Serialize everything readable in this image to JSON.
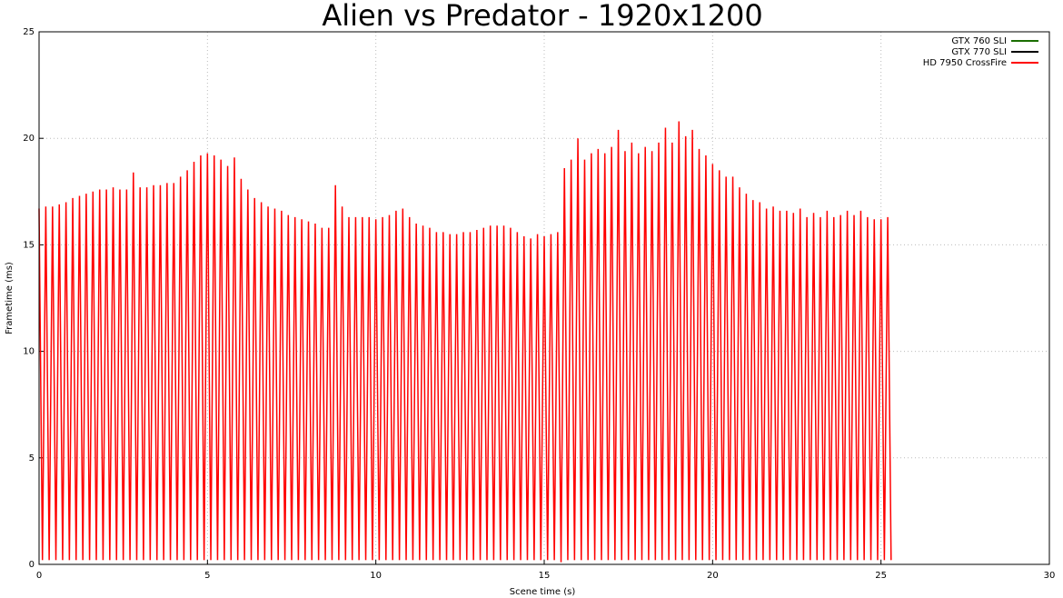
{
  "chart_data": {
    "type": "line",
    "title": "Alien vs Predator - 1920x1200",
    "x_label": "Scene time (s)",
    "y_label": "Frametime (ms)",
    "xlim": [
      0,
      30
    ],
    "xticks": [
      0,
      5,
      10,
      15,
      20,
      25,
      30
    ],
    "ylim": [
      0,
      25
    ],
    "yticks": [
      0,
      5,
      10,
      15,
      20,
      25
    ],
    "grid": true,
    "legend": "top-right",
    "series": [
      {
        "name": "GTX 760 SLI",
        "color": "#1a6e00",
        "x": [],
        "values": []
      },
      {
        "name": "GTX 770 SLI",
        "color": "#000000",
        "x": [],
        "values": []
      },
      {
        "name": "HD 7950 CrossFire",
        "color": "#ff0000",
        "x": [
          0,
          0.1,
          0.2,
          0.3,
          0.4,
          0.5,
          0.6,
          0.7,
          0.8,
          0.9,
          1,
          1.1,
          1.2,
          1.3,
          1.4,
          1.5,
          1.6,
          1.7,
          1.8,
          1.9,
          2,
          2.1,
          2.2,
          2.3,
          2.4,
          2.5,
          2.6,
          2.7,
          2.8,
          2.9,
          3,
          3.1,
          3.2,
          3.3,
          3.4,
          3.5,
          3.6,
          3.7,
          3.8,
          3.9,
          4,
          4.1,
          4.2,
          4.3,
          4.4,
          4.5,
          4.6,
          4.7,
          4.8,
          4.9,
          5,
          5.1,
          5.2,
          5.3,
          5.4,
          5.5,
          5.6,
          5.7,
          5.8,
          5.9,
          6,
          6.1,
          6.2,
          6.3,
          6.4,
          6.5,
          6.6,
          6.7,
          6.8,
          6.9,
          7,
          7.1,
          7.2,
          7.3,
          7.4,
          7.5,
          7.6,
          7.7,
          7.8,
          7.9,
          8,
          8.1,
          8.2,
          8.3,
          8.4,
          8.5,
          8.6,
          8.7,
          8.8,
          8.9,
          9,
          9.1,
          9.2,
          9.3,
          9.4,
          9.5,
          9.6,
          9.7,
          9.8,
          9.9,
          10,
          10.1,
          10.2,
          10.3,
          10.4,
          10.5,
          10.6,
          10.7,
          10.8,
          10.9,
          11,
          11.1,
          11.2,
          11.3,
          11.4,
          11.5,
          11.6,
          11.7,
          11.8,
          11.9,
          12,
          12.1,
          12.2,
          12.3,
          12.4,
          12.5,
          12.6,
          12.7,
          12.8,
          12.9,
          13,
          13.1,
          13.2,
          13.3,
          13.4,
          13.5,
          13.6,
          13.7,
          13.8,
          13.9,
          14,
          14.1,
          14.2,
          14.3,
          14.4,
          14.5,
          14.6,
          14.7,
          14.8,
          14.9,
          15,
          15.1,
          15.2,
          15.3,
          15.4,
          15.5,
          15.6,
          15.7,
          15.8,
          15.9,
          16,
          16.1,
          16.2,
          16.3,
          16.4,
          16.5,
          16.6,
          16.7,
          16.8,
          16.9,
          17,
          17.1,
          17.2,
          17.3,
          17.4,
          17.5,
          17.6,
          17.7,
          17.8,
          17.9,
          18,
          18.1,
          18.2,
          18.3,
          18.4,
          18.5,
          18.6,
          18.7,
          18.8,
          18.9,
          19,
          19.1,
          19.2,
          19.3,
          19.4,
          19.5,
          19.6,
          19.7,
          19.8,
          19.9,
          20,
          20.1,
          20.2,
          20.3,
          20.4,
          20.5,
          20.6,
          20.7,
          20.8,
          20.9,
          21,
          21.1,
          21.2,
          21.3,
          21.4,
          21.5,
          21.6,
          21.7,
          21.8,
          21.9,
          22,
          22.1,
          22.2,
          22.3,
          22.4,
          22.5,
          22.6,
          22.7,
          22.8,
          22.9,
          23,
          23.1,
          23.2,
          23.3,
          23.4,
          23.5,
          23.6,
          23.7,
          23.8,
          23.9,
          24,
          24.1,
          24.2,
          24.3,
          24.4,
          24.5,
          24.6,
          24.7,
          24.8,
          24.9,
          25,
          25.1,
          25.2,
          25.3
        ],
        "values": [
          16.7,
          0.2,
          16.8,
          0.2,
          16.8,
          0.2,
          16.9,
          0.2,
          17.0,
          0.2,
          17.2,
          0.2,
          17.3,
          0.2,
          17.4,
          0.2,
          17.5,
          0.2,
          17.6,
          0.2,
          17.6,
          0.2,
          17.7,
          0.2,
          17.6,
          0.2,
          17.6,
          0.2,
          18.4,
          0.2,
          17.7,
          0.2,
          17.7,
          0.2,
          17.8,
          0.2,
          17.8,
          0.2,
          17.9,
          0.2,
          17.9,
          0.2,
          18.2,
          0.2,
          18.5,
          0.2,
          18.9,
          0.2,
          19.2,
          0.2,
          19.3,
          0.2,
          19.2,
          0.2,
          19.0,
          0.2,
          18.7,
          0.2,
          19.1,
          0.2,
          18.1,
          0.2,
          17.6,
          0.2,
          17.2,
          0.2,
          17.0,
          0.2,
          16.8,
          0.2,
          16.7,
          0.2,
          16.6,
          0.2,
          16.4,
          0.2,
          16.3,
          0.2,
          16.2,
          0.2,
          16.1,
          0.2,
          16.0,
          0.2,
          15.8,
          0.2,
          15.8,
          0.2,
          17.8,
          0.2,
          16.8,
          0.2,
          16.3,
          0.2,
          16.3,
          0.2,
          16.3,
          0.2,
          16.3,
          0.2,
          16.2,
          0.2,
          16.3,
          0.2,
          16.4,
          0.2,
          16.6,
          0.2,
          16.7,
          0.2,
          16.3,
          0.2,
          16.0,
          0.2,
          15.9,
          0.2,
          15.8,
          0.2,
          15.6,
          0.2,
          15.6,
          0.2,
          15.5,
          0.2,
          15.5,
          0.2,
          15.6,
          0.2,
          15.6,
          0.2,
          15.7,
          0.2,
          15.8,
          0.2,
          15.9,
          0.2,
          15.9,
          0.2,
          15.9,
          0.2,
          15.8,
          0.2,
          15.6,
          0.2,
          15.4,
          0.2,
          15.3,
          0.2,
          15.5,
          0.2,
          15.4,
          0.2,
          15.5,
          0.2,
          15.6,
          0.1,
          18.6,
          0.2,
          19.0,
          0.2,
          20.0,
          0.2,
          19.0,
          0.2,
          19.3,
          0.2,
          19.5,
          0.2,
          19.3,
          0.2,
          19.6,
          0.2,
          20.4,
          0.2,
          19.4,
          0.2,
          19.8,
          0.2,
          19.3,
          0.2,
          19.6,
          0.2,
          19.4,
          0.2,
          19.8,
          0.2,
          20.5,
          0.2,
          19.8,
          0.2,
          20.8,
          0.2,
          20.1,
          0.2,
          20.4,
          0.2,
          19.5,
          0.2,
          19.2,
          0.2,
          18.8,
          0.2,
          18.5,
          0.2,
          18.2,
          0.2,
          18.2,
          0.2,
          17.7,
          0.2,
          17.4,
          0.2,
          17.1,
          0.2,
          17.0,
          0.2,
          16.7,
          0.2,
          16.8,
          0.2,
          16.6,
          0.2,
          16.6,
          0.2,
          16.5,
          0.2,
          16.7,
          0.2,
          16.3,
          0.2,
          16.5,
          0.2,
          16.3,
          0.2,
          16.6,
          0.2,
          16.3,
          0.2,
          16.4,
          0.2,
          16.6,
          0.2,
          16.4,
          0.2,
          16.6,
          0.2,
          16.3,
          0.2,
          16.2,
          0.2,
          16.2,
          0.2,
          16.3,
          0.2
        ]
      }
    ]
  }
}
